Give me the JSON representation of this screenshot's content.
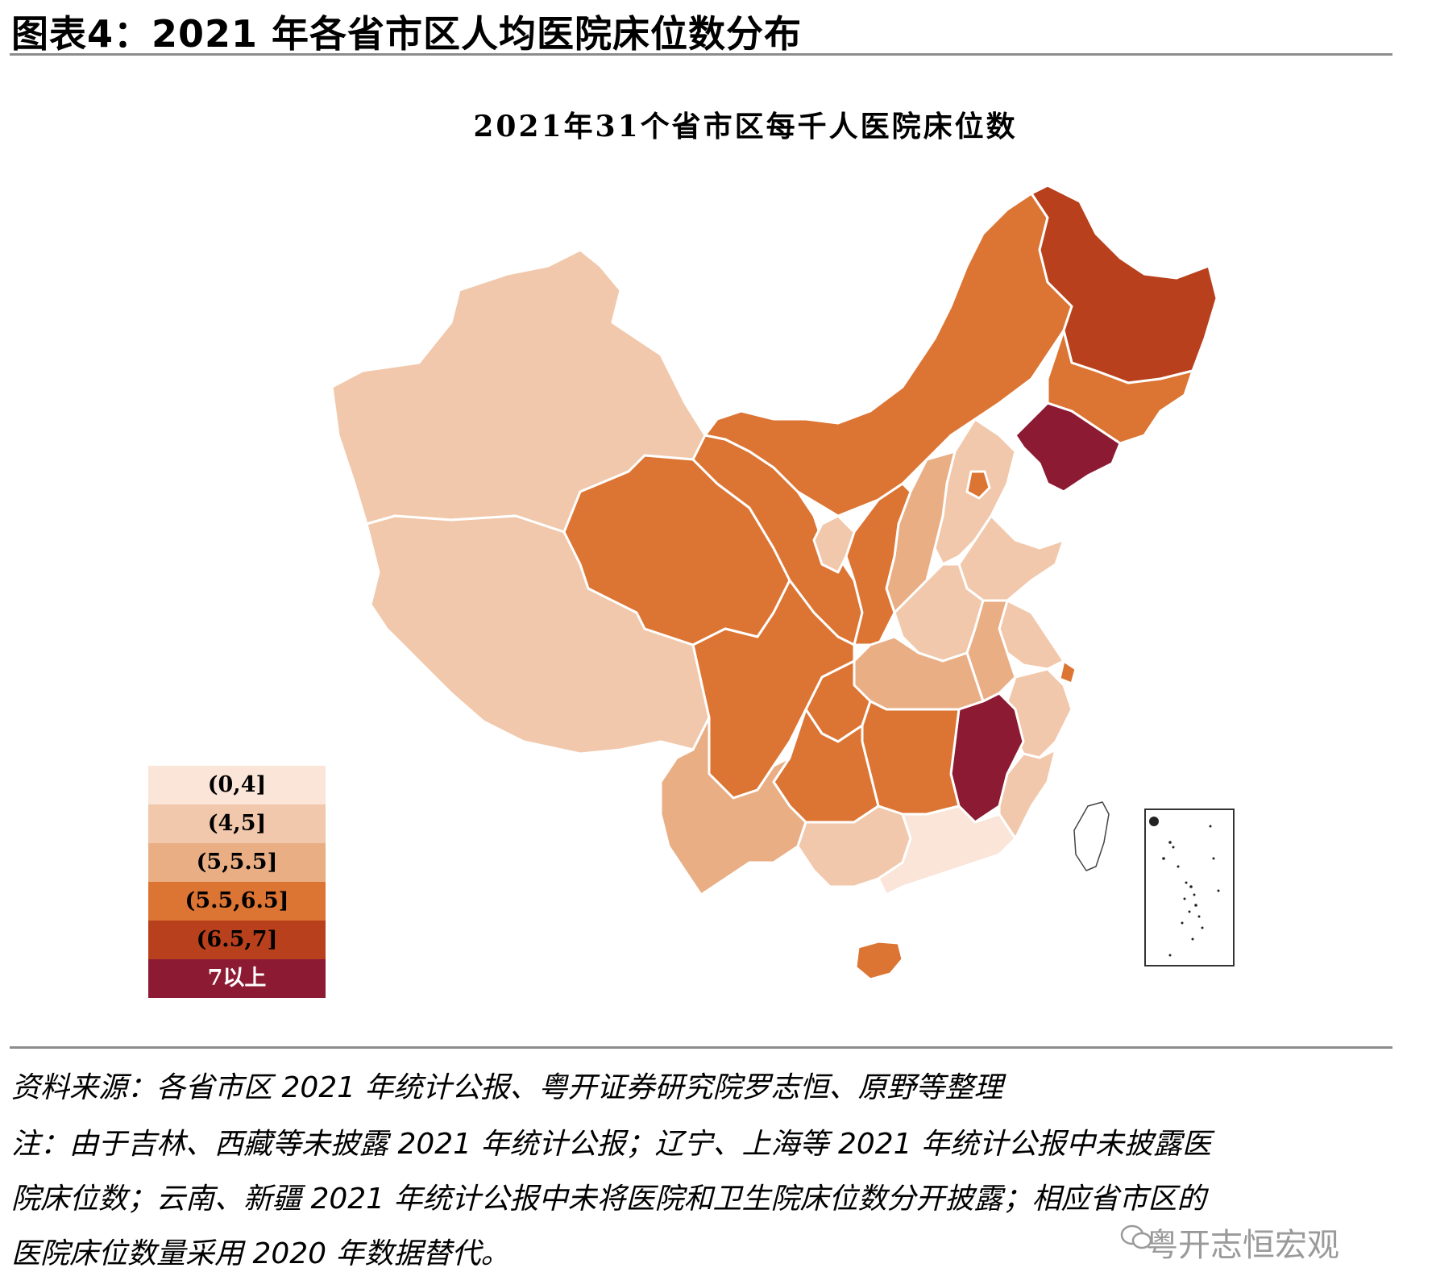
{
  "header": {
    "figure_title": "图表4：2021 年各省市区人均医院床位数分布"
  },
  "map": {
    "title": "2021年31个省市区每千人医院床位数",
    "colors": {
      "c0": "#fbe5d9",
      "c1": "#f1c8ab",
      "c2": "#e9ae84",
      "c3": "#dc7433",
      "c4": "#b8401c",
      "c5": "#8c1a33",
      "border": "#ffffff",
      "taiwan": "#ffffff"
    },
    "legend": [
      {
        "label": "(0,4]",
        "color": "#fbe5d9",
        "text_color": "#000000"
      },
      {
        "label": "(4,5]",
        "color": "#f1c8ab",
        "text_color": "#000000"
      },
      {
        "label": "(5,5.5]",
        "color": "#e9ae84",
        "text_color": "#000000"
      },
      {
        "label": "(5.5,6.5]",
        "color": "#dc7433",
        "text_color": "#000000"
      },
      {
        "label": "(6.5,7]",
        "color": "#b8401c",
        "text_color": "#000000"
      },
      {
        "label": "7以上",
        "color": "#8c1a33",
        "text_color": "#ffffff"
      }
    ]
  },
  "notes": {
    "source": "资料来源：各省市区 2021 年统计公报、粤开证券研究院罗志恒、原野等整理",
    "note_line1": "注：由于吉林、西藏等未披露 2021 年统计公报；辽宁、上海等 2021 年统计公报中未披露医",
    "note_line2": "院床位数；云南、新疆 2021 年统计公报中未将医院和卫生院床位数分开披露；相应省市区的",
    "note_line3": "医院床位数量采用 2020 年数据替代。"
  },
  "watermark": {
    "text": "粤开志恒宏观",
    "icon": "wechat-icon"
  }
}
